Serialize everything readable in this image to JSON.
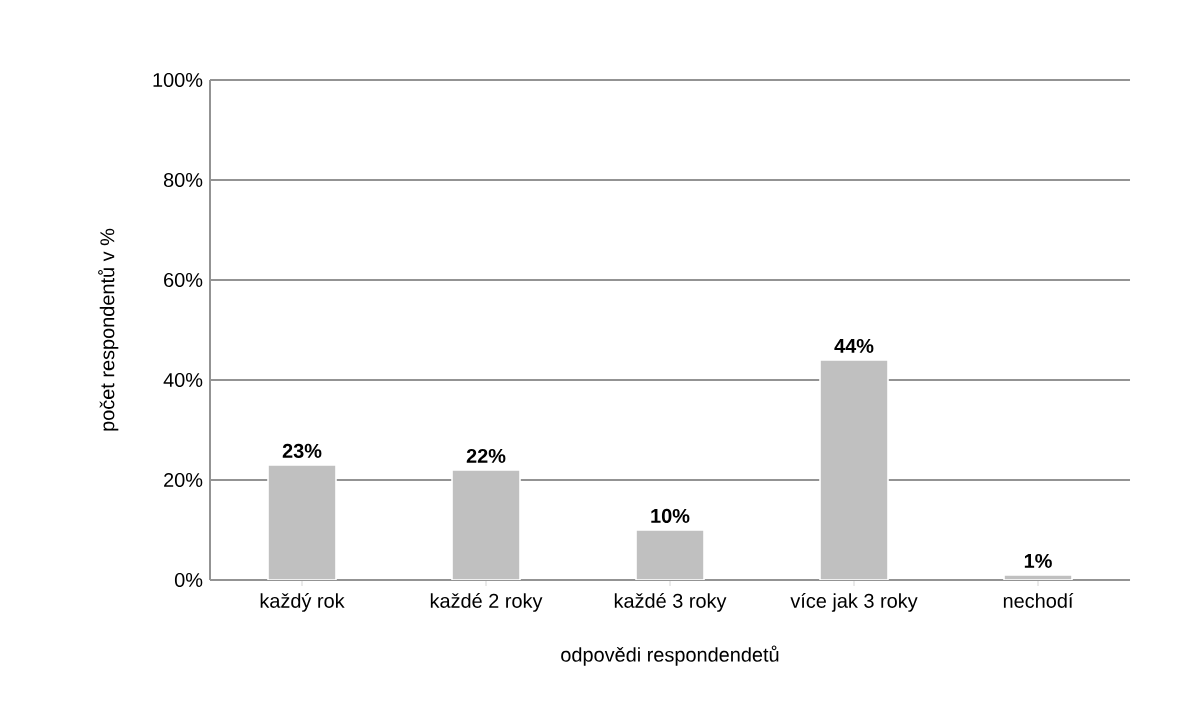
{
  "chart_data": {
    "type": "bar",
    "xlabel": "odpovědi respondendetů",
    "ylabel": "počet respondentů v %",
    "categories": [
      "každý rok",
      "každé 2 roky",
      "každé 3 roky",
      "více jak 3 roky",
      "nechodí"
    ],
    "values": [
      23,
      22,
      10,
      44,
      1
    ],
    "value_labels": [
      "23%",
      "22%",
      "10%",
      "44%",
      "1%"
    ],
    "color": "#c0c0c0",
    "ylim": [
      0,
      100
    ],
    "yticks": [
      {
        "value": 0,
        "label": "0%"
      },
      {
        "value": 20,
        "label": "20%"
      },
      {
        "value": 40,
        "label": "40%"
      },
      {
        "value": 60,
        "label": "60%"
      },
      {
        "value": 80,
        "label": "80%"
      },
      {
        "value": 100,
        "label": "100%"
      }
    ],
    "grid": "y"
  }
}
